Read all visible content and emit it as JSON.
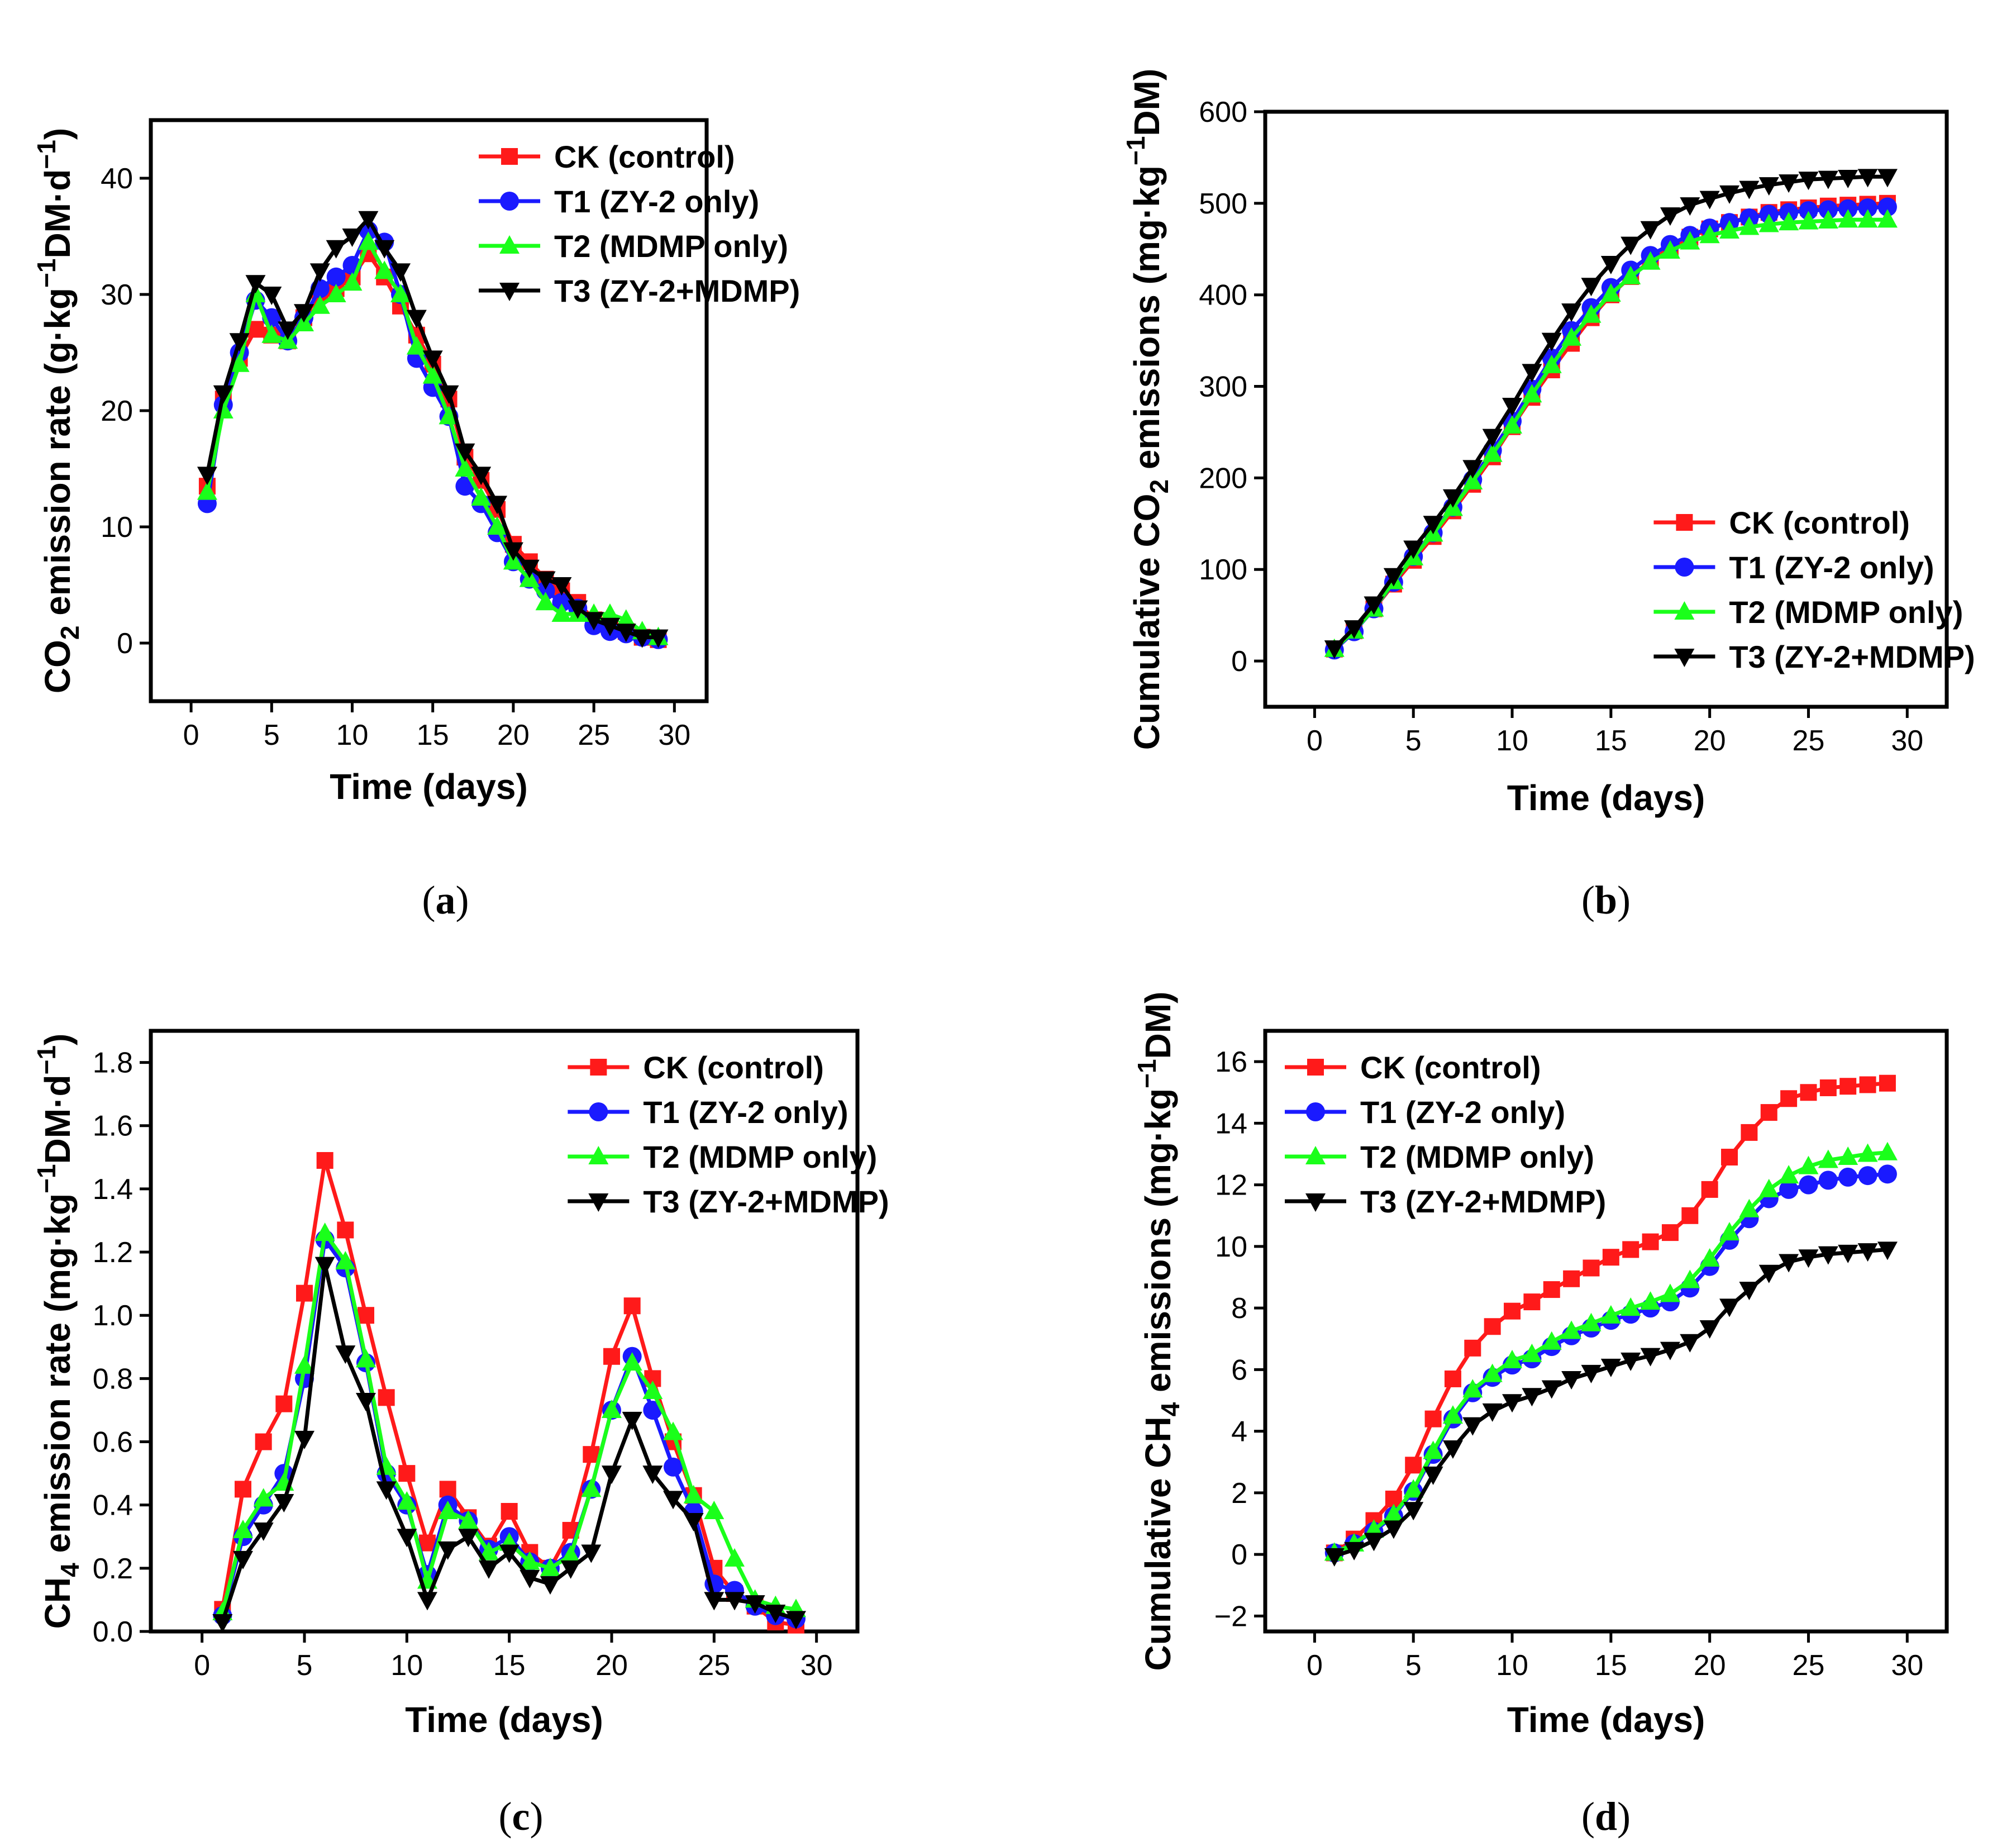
{
  "colors": {
    "CK": "#ff1a1a",
    "T1": "#1a1aff",
    "T2": "#1aff1a",
    "T3": "#000000"
  },
  "legend": {
    "CK": "CK (control)",
    "T1": "T1  (ZY-2 only)",
    "T2": "T2  (MDMP only)",
    "T3": "T3  (ZY-2+MDMP)"
  },
  "chart_data": [
    {
      "id": "a",
      "type": "line",
      "caption_letter": "a",
      "xlabel": "Time (days)",
      "ylabel": {
        "pre": "CO",
        "sub": "2",
        "mid": " emission rate (g·kg",
        "sup": "−1",
        "post": "DM·d",
        "sup2": "−1",
        "end": ")"
      },
      "xlim": [
        -2.5,
        32
      ],
      "ylim": [
        -5,
        45
      ],
      "xticks": [
        0,
        5,
        10,
        15,
        20,
        25,
        30
      ],
      "yticks": [
        0,
        10,
        20,
        30,
        40
      ],
      "legend_position": "top-right",
      "x": [
        1,
        2,
        3,
        4,
        5,
        6,
        7,
        8,
        9,
        10,
        11,
        12,
        13,
        14,
        15,
        16,
        17,
        18,
        19,
        20,
        21,
        22,
        23,
        24,
        25,
        26,
        27,
        28,
        29
      ],
      "series": [
        {
          "key": "CK",
          "marker": "square",
          "values": [
            13.5,
            21,
            24.5,
            27,
            26.5,
            26,
            28,
            30,
            30.5,
            31.5,
            33.5,
            31.5,
            29,
            26.5,
            24,
            21,
            16,
            14,
            11.5,
            8.5,
            7,
            5.5,
            4.5,
            3.5,
            2,
            1.5,
            1,
            0.5,
            0.3
          ]
        },
        {
          "key": "T1",
          "marker": "circle",
          "values": [
            12,
            20.5,
            25,
            29.5,
            28,
            26,
            28,
            30.5,
            31.5,
            32.5,
            35.5,
            34.5,
            30,
            24.5,
            22,
            19.5,
            13.5,
            12,
            9.5,
            7,
            5.5,
            4.5,
            3.5,
            3,
            1.5,
            1,
            0.8,
            0.5,
            0.3
          ]
        },
        {
          "key": "T2",
          "marker": "triangle-up",
          "values": [
            13,
            20,
            24,
            30,
            26.5,
            26,
            27.5,
            29,
            30,
            31,
            34.5,
            32,
            30,
            25.5,
            23,
            19.5,
            15,
            12.5,
            10,
            7,
            5.5,
            3.5,
            2.5,
            2.5,
            2.5,
            2.5,
            2,
            1,
            0.5
          ]
        },
        {
          "key": "T3",
          "marker": "triangle-down",
          "values": [
            14.5,
            21.5,
            26,
            31,
            30,
            27,
            28.5,
            32,
            34,
            35,
            36.5,
            34,
            32,
            28,
            24.5,
            21.5,
            16.5,
            14.5,
            12,
            8,
            6.5,
            5.5,
            5,
            3,
            2,
            1.5,
            1,
            0.5,
            0.5
          ]
        }
      ]
    },
    {
      "id": "b",
      "type": "line",
      "caption_letter": "b",
      "xlabel": "Time (days)",
      "ylabel": {
        "pre": "Cumulative CO",
        "sub": "2",
        "mid": " emissions (mg·kg",
        "sup": "−1",
        "post": "DM)",
        "sup2": "",
        "end": ""
      },
      "xlim": [
        -2.5,
        32
      ],
      "ylim": [
        -50,
        600
      ],
      "xticks": [
        0,
        5,
        10,
        15,
        20,
        25,
        30
      ],
      "yticks": [
        0,
        100,
        200,
        300,
        400,
        500,
        600
      ],
      "legend_position": "bottom-right",
      "x": [
        1,
        2,
        3,
        4,
        5,
        6,
        7,
        8,
        9,
        10,
        11,
        12,
        13,
        14,
        15,
        16,
        17,
        18,
        19,
        20,
        21,
        22,
        23,
        24,
        25,
        26,
        27,
        28,
        29
      ],
      "series": [
        {
          "key": "CK",
          "marker": "square",
          "values": [
            13,
            33,
            57,
            84,
            110,
            136,
            164,
            193,
            223,
            256,
            288,
            318,
            347,
            375,
            400,
            420,
            437,
            451,
            463,
            472,
            479,
            485,
            490,
            493,
            495,
            497,
            498,
            499,
            500
          ]
        },
        {
          "key": "T1",
          "marker": "circle",
          "values": [
            12,
            32,
            57,
            86,
            114,
            140,
            168,
            198,
            230,
            262,
            297,
            331,
            361,
            386,
            408,
            427,
            443,
            455,
            465,
            473,
            479,
            484,
            488,
            490,
            492,
            493,
            494,
            495,
            496
          ]
        },
        {
          "key": "T2",
          "marker": "triangle-up",
          "values": [
            13,
            33,
            57,
            87,
            113,
            139,
            167,
            196,
            226,
            257,
            291,
            323,
            353,
            378,
            401,
            420,
            436,
            448,
            458,
            465,
            470,
            474,
            477,
            479,
            480,
            481,
            482,
            482,
            482
          ]
        },
        {
          "key": "T3",
          "marker": "triangle-down",
          "values": [
            14,
            36,
            62,
            93,
            123,
            150,
            179,
            211,
            245,
            279,
            316,
            350,
            382,
            410,
            434,
            455,
            472,
            487,
            498,
            505,
            511,
            516,
            520,
            523,
            526,
            527,
            528,
            529,
            529
          ]
        }
      ]
    },
    {
      "id": "c",
      "type": "line",
      "caption_letter": "c",
      "xlabel": "Time (days)",
      "ylabel": {
        "pre": "CH",
        "sub": "4",
        "mid": " emission rate (mg·kg",
        "sup": "−1",
        "post": "DM·d",
        "sup2": "−1",
        "end": ")"
      },
      "xlim": [
        -2.5,
        32
      ],
      "ylim": [
        0,
        1.9
      ],
      "xticks": [
        0,
        5,
        10,
        15,
        20,
        25,
        30
      ],
      "yticks": [
        0.0,
        0.2,
        0.4,
        0.6,
        0.8,
        1.0,
        1.2,
        1.4,
        1.6,
        1.8
      ],
      "ytick_decimals": 1,
      "legend_position": "top-right",
      "x": [
        1,
        2,
        3,
        4,
        5,
        6,
        7,
        8,
        9,
        10,
        11,
        12,
        13,
        14,
        15,
        16,
        17,
        18,
        19,
        20,
        21,
        22,
        23,
        24,
        25,
        26,
        27,
        28,
        29
      ],
      "series": [
        {
          "key": "CK",
          "marker": "square",
          "values": [
            0.07,
            0.45,
            0.6,
            0.72,
            1.07,
            1.49,
            1.27,
            1.0,
            0.74,
            0.5,
            0.28,
            0.45,
            0.36,
            0.27,
            0.38,
            0.25,
            0.2,
            0.32,
            0.56,
            0.87,
            1.03,
            0.8,
            0.6,
            0.43,
            0.2,
            0.12,
            0.08,
            0.03,
            0.02
          ]
        },
        {
          "key": "T1",
          "marker": "circle",
          "values": [
            0.05,
            0.3,
            0.4,
            0.5,
            0.8,
            1.24,
            1.15,
            0.85,
            0.5,
            0.4,
            0.18,
            0.4,
            0.35,
            0.26,
            0.3,
            0.22,
            0.2,
            0.25,
            0.45,
            0.7,
            0.87,
            0.7,
            0.52,
            0.38,
            0.15,
            0.13,
            0.08,
            0.05,
            0.04
          ]
        },
        {
          "key": "T2",
          "marker": "triangle-up",
          "values": [
            0.06,
            0.32,
            0.42,
            0.47,
            0.84,
            1.26,
            1.17,
            0.86,
            0.52,
            0.41,
            0.16,
            0.38,
            0.35,
            0.25,
            0.28,
            0.22,
            0.2,
            0.24,
            0.45,
            0.7,
            0.85,
            0.76,
            0.63,
            0.43,
            0.38,
            0.23,
            0.1,
            0.08,
            0.07
          ]
        },
        {
          "key": "T3",
          "marker": "triangle-down",
          "values": [
            0.03,
            0.23,
            0.32,
            0.41,
            0.61,
            1.16,
            0.88,
            0.73,
            0.45,
            0.3,
            0.1,
            0.26,
            0.3,
            0.2,
            0.25,
            0.17,
            0.15,
            0.2,
            0.25,
            0.5,
            0.67,
            0.5,
            0.42,
            0.35,
            0.1,
            0.1,
            0.09,
            0.06,
            0.04
          ]
        }
      ]
    },
    {
      "id": "d",
      "type": "line",
      "caption_letter": "d",
      "xlabel": "Time (days)",
      "ylabel": {
        "pre": "Cumulative CH",
        "sub": "4",
        "mid": " emissions (mg·kg",
        "sup": "−1",
        "post": "DM)",
        "sup2": "",
        "end": ""
      },
      "xlim": [
        -2.5,
        32
      ],
      "ylim": [
        -2.5,
        17
      ],
      "xticks": [
        0,
        5,
        10,
        15,
        20,
        25,
        30
      ],
      "yticks": [
        -2,
        0,
        2,
        4,
        6,
        8,
        10,
        12,
        14,
        16
      ],
      "legend_position": "top-left",
      "x": [
        1,
        2,
        3,
        4,
        5,
        6,
        7,
        8,
        9,
        10,
        11,
        12,
        13,
        14,
        15,
        16,
        17,
        18,
        19,
        20,
        21,
        22,
        23,
        24,
        25,
        26,
        27,
        28,
        29
      ],
      "series": [
        {
          "key": "CK",
          "marker": "square",
          "values": [
            0.05,
            0.5,
            1.1,
            1.8,
            2.9,
            4.4,
            5.7,
            6.7,
            7.4,
            7.9,
            8.2,
            8.6,
            8.95,
            9.3,
            9.65,
            9.9,
            10.15,
            10.45,
            11.0,
            11.85,
            12.9,
            13.7,
            14.35,
            14.8,
            15.0,
            15.15,
            15.2,
            15.25,
            15.3
          ]
        },
        {
          "key": "T1",
          "marker": "circle",
          "values": [
            0.05,
            0.35,
            0.75,
            1.25,
            2.05,
            3.25,
            4.4,
            5.25,
            5.75,
            6.15,
            6.35,
            6.75,
            7.1,
            7.35,
            7.6,
            7.8,
            8.0,
            8.2,
            8.65,
            9.35,
            10.2,
            10.9,
            11.55,
            11.85,
            12.0,
            12.15,
            12.25,
            12.3,
            12.35
          ]
        },
        {
          "key": "T2",
          "marker": "triangle-up",
          "values": [
            0.05,
            0.35,
            0.8,
            1.3,
            2.1,
            3.35,
            4.5,
            5.35,
            5.85,
            6.3,
            6.5,
            6.9,
            7.25,
            7.5,
            7.75,
            8.0,
            8.2,
            8.45,
            8.9,
            9.6,
            10.45,
            11.2,
            11.85,
            12.3,
            12.6,
            12.8,
            12.9,
            13.0,
            13.05
          ]
        },
        {
          "key": "T3",
          "marker": "triangle-down",
          "values": [
            -0.05,
            0.15,
            0.45,
            0.85,
            1.45,
            2.6,
            3.45,
            4.2,
            4.65,
            4.95,
            5.15,
            5.4,
            5.7,
            5.9,
            6.1,
            6.3,
            6.45,
            6.65,
            6.9,
            7.35,
            8.05,
            8.6,
            9.15,
            9.5,
            9.65,
            9.75,
            9.8,
            9.85,
            9.9
          ]
        }
      ]
    }
  ]
}
